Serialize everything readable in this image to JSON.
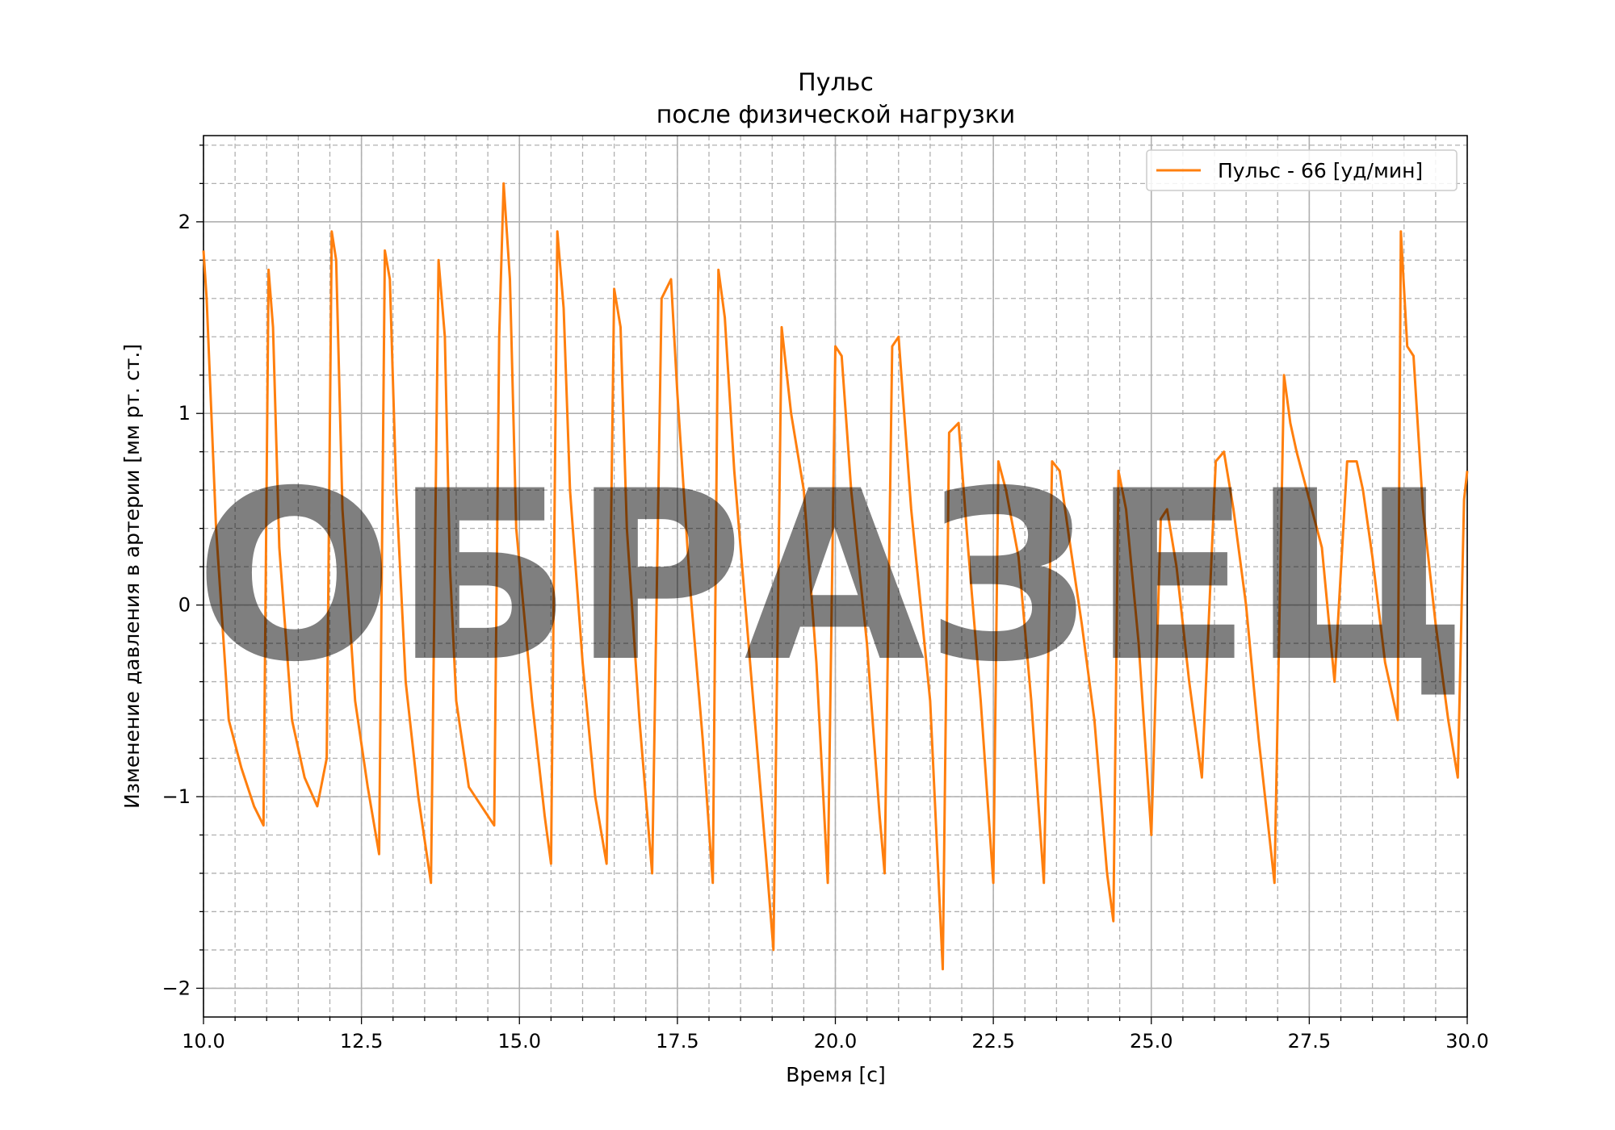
{
  "chart_data": {
    "type": "line",
    "title": "Пульс",
    "subtitle": "после физической нагрузки",
    "xlabel": "Время [с]",
    "ylabel": "Изменение давления в артерии [мм рт. ст.]",
    "xlim": [
      10.0,
      30.0
    ],
    "ylim": [
      -2.15,
      2.45
    ],
    "x_ticks": [
      "10.0",
      "12.5",
      "15.0",
      "17.5",
      "20.0",
      "22.5",
      "25.0",
      "27.5",
      "30.0"
    ],
    "x_tick_values": [
      10.0,
      12.5,
      15.0,
      17.5,
      20.0,
      22.5,
      25.0,
      27.5,
      30.0
    ],
    "y_ticks": [
      "−2",
      "−1",
      "0",
      "1",
      "2"
    ],
    "y_tick_values": [
      -2,
      -1,
      0,
      1,
      2
    ],
    "x_minor_step": 0.5,
    "y_minor_step": 0.2,
    "grid": true,
    "minor_grid": true,
    "legend_position": "top-right",
    "line_color": "#ff7f0e",
    "series": [
      {
        "name": "Пульс - 66 [уд/мин]",
        "color": "#ff7f0e",
        "x": [
          10.0,
          10.05,
          10.2,
          10.4,
          10.6,
          10.8,
          10.95,
          11.03,
          11.1,
          11.2,
          11.4,
          11.6,
          11.8,
          11.95,
          12.03,
          12.1,
          12.2,
          12.4,
          12.6,
          12.78,
          12.87,
          12.95,
          13.05,
          13.2,
          13.4,
          13.6,
          13.72,
          13.82,
          13.9,
          14.0,
          14.2,
          14.4,
          14.6,
          14.68,
          14.75,
          14.85,
          14.95,
          15.2,
          15.4,
          15.5,
          15.6,
          15.7,
          15.8,
          16.0,
          16.2,
          16.38,
          16.5,
          16.6,
          16.7,
          16.9,
          17.1,
          17.25,
          17.4,
          17.5,
          17.7,
          17.9,
          18.06,
          18.15,
          18.25,
          18.4,
          18.7,
          18.9,
          19.02,
          19.15,
          19.3,
          19.5,
          19.7,
          19.88,
          20.0,
          20.1,
          20.25,
          20.5,
          20.7,
          20.78,
          20.9,
          21.0,
          21.2,
          21.5,
          21.7,
          21.8,
          21.95,
          22.1,
          22.3,
          22.5,
          22.58,
          22.7,
          22.9,
          23.1,
          23.3,
          23.43,
          23.55,
          23.7,
          23.9,
          24.1,
          24.3,
          24.4,
          24.48,
          24.6,
          24.8,
          25.0,
          25.15,
          25.25,
          25.4,
          25.6,
          25.8,
          26.02,
          26.15,
          26.3,
          26.5,
          26.7,
          26.95,
          27.1,
          27.2,
          27.3,
          27.5,
          27.7,
          27.9,
          28.1,
          28.25,
          28.35,
          28.5,
          28.7,
          28.9,
          28.95,
          29.05,
          29.15,
          29.3,
          29.5,
          29.7,
          29.85,
          29.95,
          30.0
        ],
        "y": [
          1.85,
          1.6,
          0.4,
          -0.6,
          -0.85,
          -1.05,
          -1.15,
          1.75,
          1.45,
          0.3,
          -0.6,
          -0.9,
          -1.05,
          -0.8,
          1.95,
          1.8,
          0.5,
          -0.5,
          -0.95,
          -1.3,
          1.85,
          1.7,
          0.6,
          -0.4,
          -1.0,
          -1.45,
          1.8,
          1.4,
          0.2,
          -0.5,
          -0.95,
          -1.05,
          -1.15,
          1.4,
          2.2,
          1.7,
          0.4,
          -0.5,
          -1.1,
          -1.35,
          1.95,
          1.55,
          0.6,
          -0.3,
          -1.0,
          -1.35,
          1.65,
          1.45,
          0.4,
          -0.6,
          -1.4,
          1.6,
          1.7,
          1.1,
          0.1,
          -0.7,
          -1.45,
          1.75,
          1.5,
          0.7,
          -0.5,
          -1.3,
          -1.8,
          1.45,
          1.0,
          0.6,
          -0.3,
          -1.45,
          1.35,
          1.3,
          0.6,
          -0.2,
          -1.1,
          -1.4,
          1.35,
          1.4,
          0.5,
          -0.5,
          -1.9,
          0.9,
          0.95,
          0.3,
          -0.5,
          -1.45,
          0.75,
          0.6,
          0.25,
          -0.5,
          -1.45,
          0.75,
          0.7,
          0.35,
          -0.1,
          -0.6,
          -1.4,
          -1.65,
          0.7,
          0.5,
          -0.2,
          -1.2,
          0.45,
          0.5,
          0.2,
          -0.4,
          -0.9,
          0.75,
          0.8,
          0.5,
          0.0,
          -0.7,
          -1.45,
          1.2,
          0.95,
          0.8,
          0.55,
          0.3,
          -0.4,
          0.75,
          0.75,
          0.6,
          0.25,
          -0.3,
          -0.6,
          1.95,
          1.35,
          1.3,
          0.5,
          -0.1,
          -0.6,
          -0.9,
          0.55,
          0.7
        ]
      }
    ]
  },
  "watermark": "ОБРАЗЕЦ"
}
